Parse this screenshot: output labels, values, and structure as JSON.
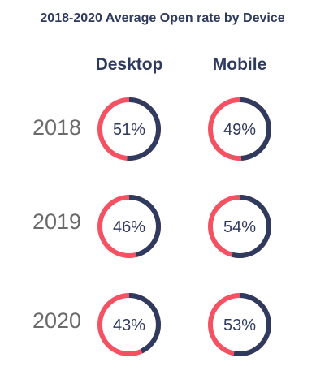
{
  "chart_data": {
    "type": "donut-grid",
    "title": "2018-2020 Average Open rate by Device",
    "columns": [
      "Desktop",
      "Mobile"
    ],
    "rows": [
      "2018",
      "2019",
      "2020"
    ],
    "values": {
      "2018": {
        "Desktop": 51,
        "Mobile": 49
      },
      "2019": {
        "Desktop": 46,
        "Mobile": 54
      },
      "2020": {
        "Desktop": 43,
        "Mobile": 53
      }
    },
    "value_suffix": "%",
    "colors": {
      "value": "#2f3a5f",
      "remainder": "#f45263"
    }
  }
}
